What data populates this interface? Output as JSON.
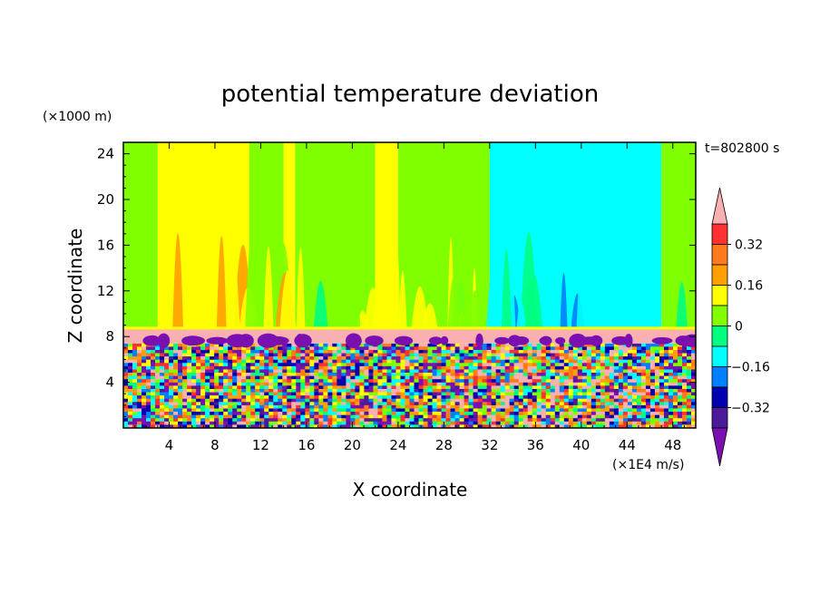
{
  "chart_data": {
    "type": "heatmap",
    "title": "potential temperature deviation",
    "xlabel": "X coordinate",
    "ylabel": "Z coordinate",
    "x_unit": "(×1E4 m/s)",
    "y_unit": "(×1000 m)",
    "time_label": "t=802800 s",
    "xlim": [
      0,
      50
    ],
    "ylim": [
      0,
      25
    ],
    "x_ticks": [
      "4",
      "8",
      "12",
      "16",
      "20",
      "24",
      "28",
      "32",
      "36",
      "40",
      "44",
      "48"
    ],
    "y_ticks": [
      "4",
      "8",
      "12",
      "16",
      "20",
      "24"
    ],
    "colorbar": {
      "tick_labels": [
        "0.32",
        "0.16",
        "0",
        "-0.16",
        "-0.32"
      ],
      "levels": [
        0.4,
        0.32,
        0.24,
        0.16,
        0.08,
        0,
        -0.08,
        -0.16,
        -0.24,
        -0.32,
        -0.4
      ],
      "colors": [
        "#ff3030",
        "#ff7a1a",
        "#ffa000",
        "#ffff00",
        "#80ff00",
        "#00ff80",
        "#00ffff",
        "#0080ff",
        "#0000b0",
        "#4a1a9a"
      ],
      "over_color": "#f8b0b0",
      "under_color": "#7a10b0"
    },
    "upper_band_values_by_x": [
      {
        "x": [
          0,
          3
        ],
        "value": 0.07
      },
      {
        "x": [
          3,
          11
        ],
        "value": 0.14
      },
      {
        "x": [
          11,
          14
        ],
        "value": 0.07
      },
      {
        "x": [
          14,
          15
        ],
        "value": 0.14
      },
      {
        "x": [
          15,
          22
        ],
        "value": 0.06
      },
      {
        "x": [
          22,
          24
        ],
        "value": 0.14
      },
      {
        "x": [
          24,
          32
        ],
        "value": 0.05
      },
      {
        "x": [
          32,
          47
        ],
        "value": -0.12
      },
      {
        "x": [
          47,
          50
        ],
        "value": 0.06
      }
    ],
    "layer_band": {
      "z": [
        7.4,
        8.7
      ],
      "value": "over",
      "edge_value": 0.1
    }
  }
}
